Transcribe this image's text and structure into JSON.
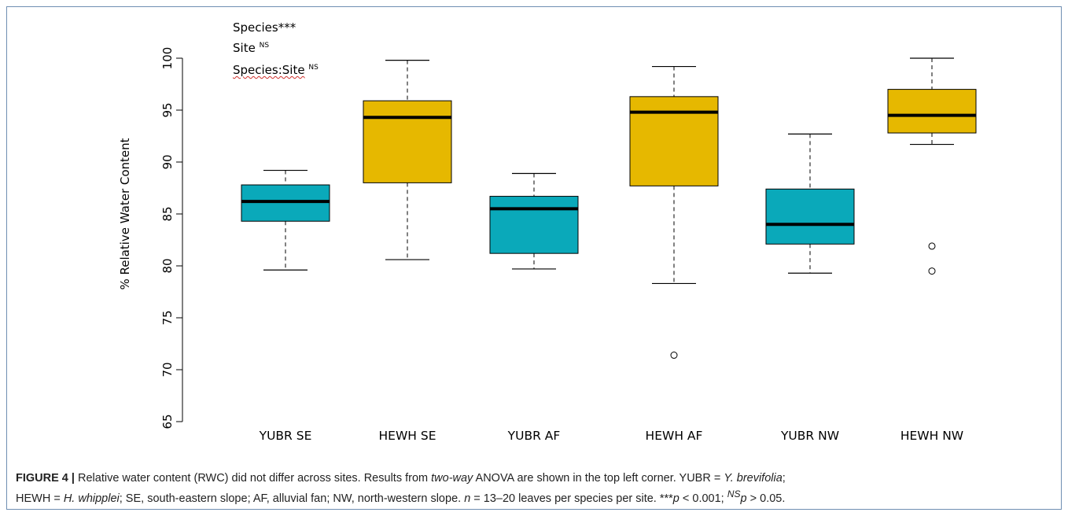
{
  "annotation": {
    "species_label": "Species***",
    "site_label": "Site",
    "site_sup": "NS",
    "interaction_label": "Species:Site",
    "interaction_sup": "NS"
  },
  "chart_data": {
    "type": "box",
    "title": "",
    "xlabel": "",
    "ylabel": "% Relative Water Content",
    "ylim": [
      65,
      100
    ],
    "yticks": [
      65,
      70,
      75,
      80,
      85,
      90,
      95,
      100
    ],
    "grid": false,
    "categories": [
      "YUBR SE",
      "HEWH SE",
      "YUBR AF",
      "HEWH AF",
      "YUBR NW",
      "HEWH NW"
    ],
    "boxes": [
      {
        "category": "YUBR SE",
        "species": "YUBR",
        "whisker_low": 79.6,
        "q1": 84.3,
        "median": 86.2,
        "q3": 87.8,
        "whisker_high": 89.2,
        "outliers": []
      },
      {
        "category": "HEWH SE",
        "species": "HEWH",
        "whisker_low": 80.6,
        "q1": 88.0,
        "median": 94.3,
        "q3": 95.9,
        "whisker_high": 99.8,
        "outliers": []
      },
      {
        "category": "YUBR AF",
        "species": "YUBR",
        "whisker_low": 79.7,
        "q1": 81.2,
        "median": 85.5,
        "q3": 86.7,
        "whisker_high": 88.9,
        "outliers": []
      },
      {
        "category": "HEWH AF",
        "species": "HEWH",
        "whisker_low": 78.3,
        "q1": 87.7,
        "median": 94.8,
        "q3": 96.3,
        "whisker_high": 99.2,
        "outliers": [
          71.4
        ]
      },
      {
        "category": "YUBR NW",
        "species": "YUBR",
        "whisker_low": 79.3,
        "q1": 82.1,
        "median": 84.0,
        "q3": 87.4,
        "whisker_high": 92.7,
        "outliers": []
      },
      {
        "category": "HEWH NW",
        "species": "HEWH",
        "whisker_low": 91.7,
        "q1": 92.8,
        "median": 94.5,
        "q3": 97.0,
        "whisker_high": 100.0,
        "outliers": [
          81.9,
          79.5
        ]
      }
    ],
    "colors": {
      "YUBR": "#0aa9ba",
      "HEWH": "#e6b800"
    }
  },
  "caption": {
    "label": "FIGURE 4 |",
    "p1": " Relative water content (RWC) did not differ across sites. Results from ",
    "i1": "two-way",
    "p2": " ANOVA are shown in the top left corner. YUBR = ",
    "i2": "Y. brevifolia",
    "p3": ";",
    "p4": "HEWH = ",
    "i3": "H. whipplei",
    "p5": "; SE, south-eastern slope; AF, alluvial fan; NW, north-western slope. ",
    "i4": "n",
    "p6": " = 13–20 leaves per species per site. ***",
    "i5": "p",
    "p7": " < 0.001; ",
    "i6": "NS",
    "i7": "p",
    "p8": " > 0.05."
  }
}
